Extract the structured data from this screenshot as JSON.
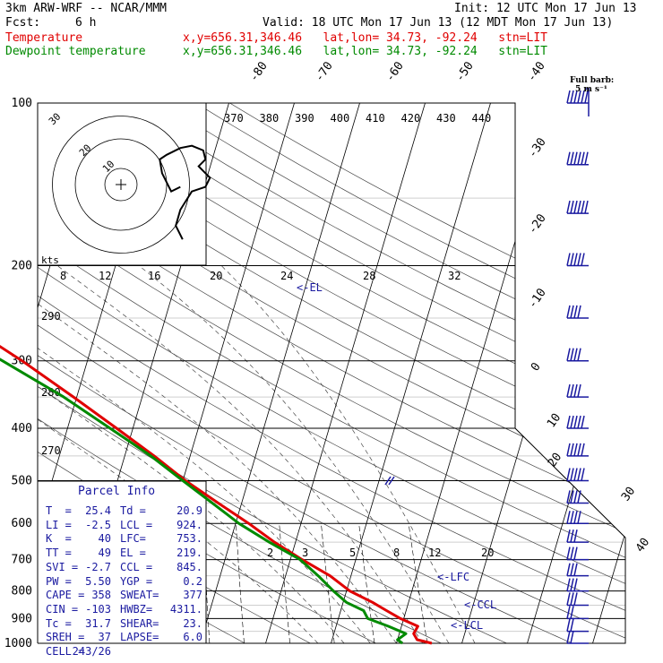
{
  "header": {
    "model": "3km ARW-WRF -- NCAR/MMM",
    "init": "Init: 12 UTC Mon 17 Jun 13",
    "fcst_label": "Fcst:",
    "fcst_value": "6 h",
    "valid": "Valid: 18 UTC Mon 17 Jun 13 (12 MDT Mon 17 Jun 13)"
  },
  "legend": {
    "temperature": {
      "label": "Temperature",
      "info": "x,y=656.31,346.46   lat,lon= 34.73, -92.24   stn=LIT",
      "color": "#e00000"
    },
    "dewpoint": {
      "label": "Dewpoint temperature",
      "info": "x,y=656.31,346.46   lat,lon= 34.73, -92.24   stn=LIT",
      "color": "#008a00"
    }
  },
  "barb_legend": {
    "title": "Full barb:",
    "unit": "5 m s⁻¹"
  },
  "parcel": {
    "title": "Parcel Info",
    "rows": [
      [
        "T  =",
        "25.4",
        "Td =",
        "20.9"
      ],
      [
        "LI =",
        "-2.5",
        "LCL =",
        "924."
      ],
      [
        "K  =",
        "40",
        "LFC=",
        "753."
      ],
      [
        "TT =",
        "49",
        "EL =",
        "219."
      ],
      [
        "SVI =",
        "-2.7",
        "CCL =",
        "845."
      ],
      [
        "PW =",
        "5.50",
        "YGP =",
        "0.2"
      ],
      [
        "CAPE =",
        "358",
        "SWEAT=",
        "377"
      ],
      [
        "CIN =",
        "-103",
        "HWBZ=",
        "4311."
      ],
      [
        "Tc =",
        "31.7",
        "SHEAR=",
        "23."
      ],
      [
        "SREH =",
        "37",
        "LAPSE=",
        "6.0"
      ],
      [
        "CELL =",
        "243/26",
        "",
        ""
      ]
    ]
  },
  "markers": {
    "el": "EL",
    "lfc": "LFC",
    "ccl": "CCL",
    "lcl": "LCL"
  },
  "hodograph": {
    "unit": "kts",
    "rings": [
      "10",
      "20",
      "30"
    ]
  },
  "chart_data": {
    "type": "line",
    "title": "Skew-T log-P sounding, stn=LIT",
    "ylabel": "Pressure (hPa)",
    "pressure_levels": [
      100,
      200,
      300,
      400,
      500,
      600,
      700,
      800,
      900,
      1000
    ],
    "isotherm_labels_top": [
      "-80",
      "-70",
      "-60",
      "-50",
      "-40"
    ],
    "isotherm_labels_right": [
      "-30",
      "-20",
      "-10",
      "0",
      "10",
      "20",
      "30",
      "40"
    ],
    "theta_labels": [
      "370",
      "380",
      "390",
      "400",
      "410",
      "420",
      "430",
      "440"
    ],
    "theta_labels_left": [
      "290",
      "280",
      "270"
    ],
    "mixing_ratio_labels": [
      "2",
      "3",
      "5",
      "8",
      "12",
      "20"
    ],
    "hodo_speed_labels": [
      "8",
      "12",
      "16",
      "20",
      "24",
      "28",
      "32"
    ],
    "series": [
      {
        "name": "Temperature",
        "color": "#e00000",
        "p": [
          1000,
          985,
          960,
          930,
          900,
          870,
          840,
          800,
          750,
          700,
          650,
          600,
          550,
          500,
          450,
          400,
          350,
          300,
          250,
          200,
          175,
          150,
          125,
          100
        ],
        "t": [
          25.4,
          23.0,
          22.2,
          22.5,
          19.5,
          17.0,
          14.5,
          10.5,
          6.8,
          1.8,
          -3.2,
          -8.0,
          -13.6,
          -19.6,
          -25.5,
          -32.5,
          -40.5,
          -50.0,
          -62.0,
          -73.0,
          -74.5,
          -73.5,
          -72.5,
          -69.0
        ]
      },
      {
        "name": "Dewpoint temperature",
        "color": "#008a00",
        "p": [
          1000,
          985,
          960,
          930,
          900,
          870,
          840,
          800,
          750,
          700,
          650,
          600,
          550,
          500,
          450,
          400,
          350,
          300,
          250,
          200,
          175,
          150,
          125,
          100
        ],
        "t": [
          20.9,
          20.0,
          21.0,
          18.0,
          14.5,
          13.5,
          10.5,
          8.0,
          5.0,
          1.5,
          -4.0,
          -9.5,
          -14.5,
          -20.0,
          -26.0,
          -33.5,
          -42.0,
          -53.0,
          -66.0,
          -80.0,
          -88.0,
          -92.0,
          -90.0,
          -89.0
        ]
      }
    ],
    "hodograph_trace": [
      [
        26,
        -1
      ],
      [
        22,
        -3
      ],
      [
        18,
        5
      ],
      [
        17,
        11
      ],
      [
        20,
        13
      ],
      [
        26,
        16
      ],
      [
        31,
        17
      ],
      [
        36,
        15
      ],
      [
        37,
        11
      ],
      [
        34,
        8
      ],
      [
        37,
        5
      ],
      [
        39,
        3
      ],
      [
        37,
        -1
      ],
      [
        31,
        -3
      ],
      [
        26,
        -11
      ],
      [
        24,
        -18
      ],
      [
        27,
        -24
      ]
    ],
    "wind_barbs": {
      "p": [
        100,
        130,
        160,
        200,
        250,
        300,
        350,
        400,
        450,
        500,
        550,
        600,
        650,
        700,
        750,
        800,
        850,
        900,
        950,
        1000
      ],
      "speed_ms": [
        30,
        30,
        30,
        25,
        20,
        20,
        20,
        25,
        25,
        25,
        20,
        20,
        15,
        15,
        15,
        15,
        15,
        10,
        10,
        10
      ]
    },
    "level_markers": [
      {
        "label": "EL",
        "p": 219
      },
      {
        "label": "LFC",
        "p": 753
      },
      {
        "label": "CCL",
        "p": 845
      },
      {
        "label": "LCL",
        "p": 924
      }
    ]
  }
}
